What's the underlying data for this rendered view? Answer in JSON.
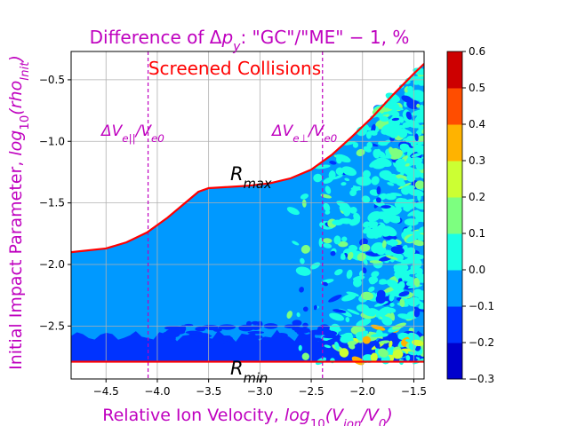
{
  "figure": {
    "title": "Difference of Δp_y: \"GC\"/\"ME\" − 1, %",
    "title_color": "#bf00bf",
    "xlabel": "Relative Ion Velocity,  log10(V_ion/V0)",
    "ylabel": "Initial Impact Parameter, log10(rho_Init)",
    "label_color": "#bf00bf",
    "annotations": [
      {
        "id": "screened",
        "text": "Screened Collisions",
        "color": "#ff0000"
      },
      {
        "id": "dv-par",
        "text": "ΔV_e||/V_e0",
        "color": "#bf00bf"
      },
      {
        "id": "dv-perp",
        "text": "ΔV_e⊥/V_e0",
        "color": "#bf00bf"
      },
      {
        "id": "rmax",
        "text": "R_max",
        "color": "#000000"
      },
      {
        "id": "rmin",
        "text": "R_min",
        "color": "#000000"
      }
    ]
  },
  "chart_data": {
    "type": "heatmap",
    "title": "Difference of Δp_y: \"GC\"/\"ME\" − 1, %",
    "xlabel": "Relative Ion Velocity,  log10(V_ion/V0)",
    "ylabel": "Initial Impact Parameter, log10(rho_Init)",
    "xlim": [
      -4.84,
      -1.4
    ],
    "ylim": [
      -2.93,
      -0.27
    ],
    "grid": true,
    "xticks": [
      -4.5,
      -4.0,
      -3.5,
      -3.0,
      -2.5,
      -2.0,
      -1.5
    ],
    "xtick_labels": [
      "−4.5",
      "−4.0",
      "−3.5",
      "−3.0",
      "−2.5",
      "−2.0",
      "−1.5"
    ],
    "yticks": [
      -0.5,
      -1.0,
      -1.5,
      -2.0,
      -2.5
    ],
    "ytick_labels": [
      "−0.5",
      "−1.0",
      "−1.5",
      "−2.0",
      "−2.5"
    ],
    "colorbar": {
      "levels": [
        -0.3,
        -0.2,
        -0.1,
        0.0,
        0.1,
        0.2,
        0.3,
        0.4,
        0.5,
        0.6
      ],
      "tick_labels": [
        "−0.3",
        "−0.2",
        "−0.1",
        "0.0",
        "0.1",
        "0.2",
        "0.3",
        "0.4",
        "0.5",
        "0.6"
      ],
      "colors": [
        "#0000cd",
        "#0033ff",
        "#0099ff",
        "#1affe6",
        "#7dff80",
        "#ccff33",
        "#ffb300",
        "#ff4d00",
        "#cd0000"
      ]
    },
    "background_level_color": "#0099ff",
    "rmax_curve": {
      "name": "R_max",
      "color": "#ff0000",
      "x": [
        -4.84,
        -4.5,
        -4.3,
        -4.1,
        -3.9,
        -3.7,
        -3.6,
        -3.5,
        -3.3,
        -3.1,
        -2.9,
        -2.7,
        -2.5,
        -2.3,
        -2.1,
        -1.9,
        -1.7,
        -1.5,
        -1.4
      ],
      "y": [
        -1.9,
        -1.87,
        -1.82,
        -1.74,
        -1.62,
        -1.48,
        -1.41,
        -1.38,
        -1.37,
        -1.36,
        -1.34,
        -1.3,
        -1.23,
        -1.11,
        -0.96,
        -0.8,
        -0.62,
        -0.45,
        -0.37
      ]
    },
    "rmin_line": {
      "name": "R_min",
      "color": "#ff0000",
      "y": -2.79
    },
    "vlines": [
      {
        "x": -4.09,
        "label": "ΔV_e||/V_e0",
        "color": "#bf00bf"
      },
      {
        "x": -2.39,
        "label": "ΔV_e⊥/V_e0",
        "color": "#bf00bf"
      }
    ],
    "noise_region": {
      "x_start": -2.8,
      "x_end": -1.4,
      "y_start": -2.79,
      "y_top": "R_max"
    },
    "bottom_band": {
      "y_from": -2.79,
      "y_to": -2.58,
      "color": "#0033ff"
    }
  }
}
